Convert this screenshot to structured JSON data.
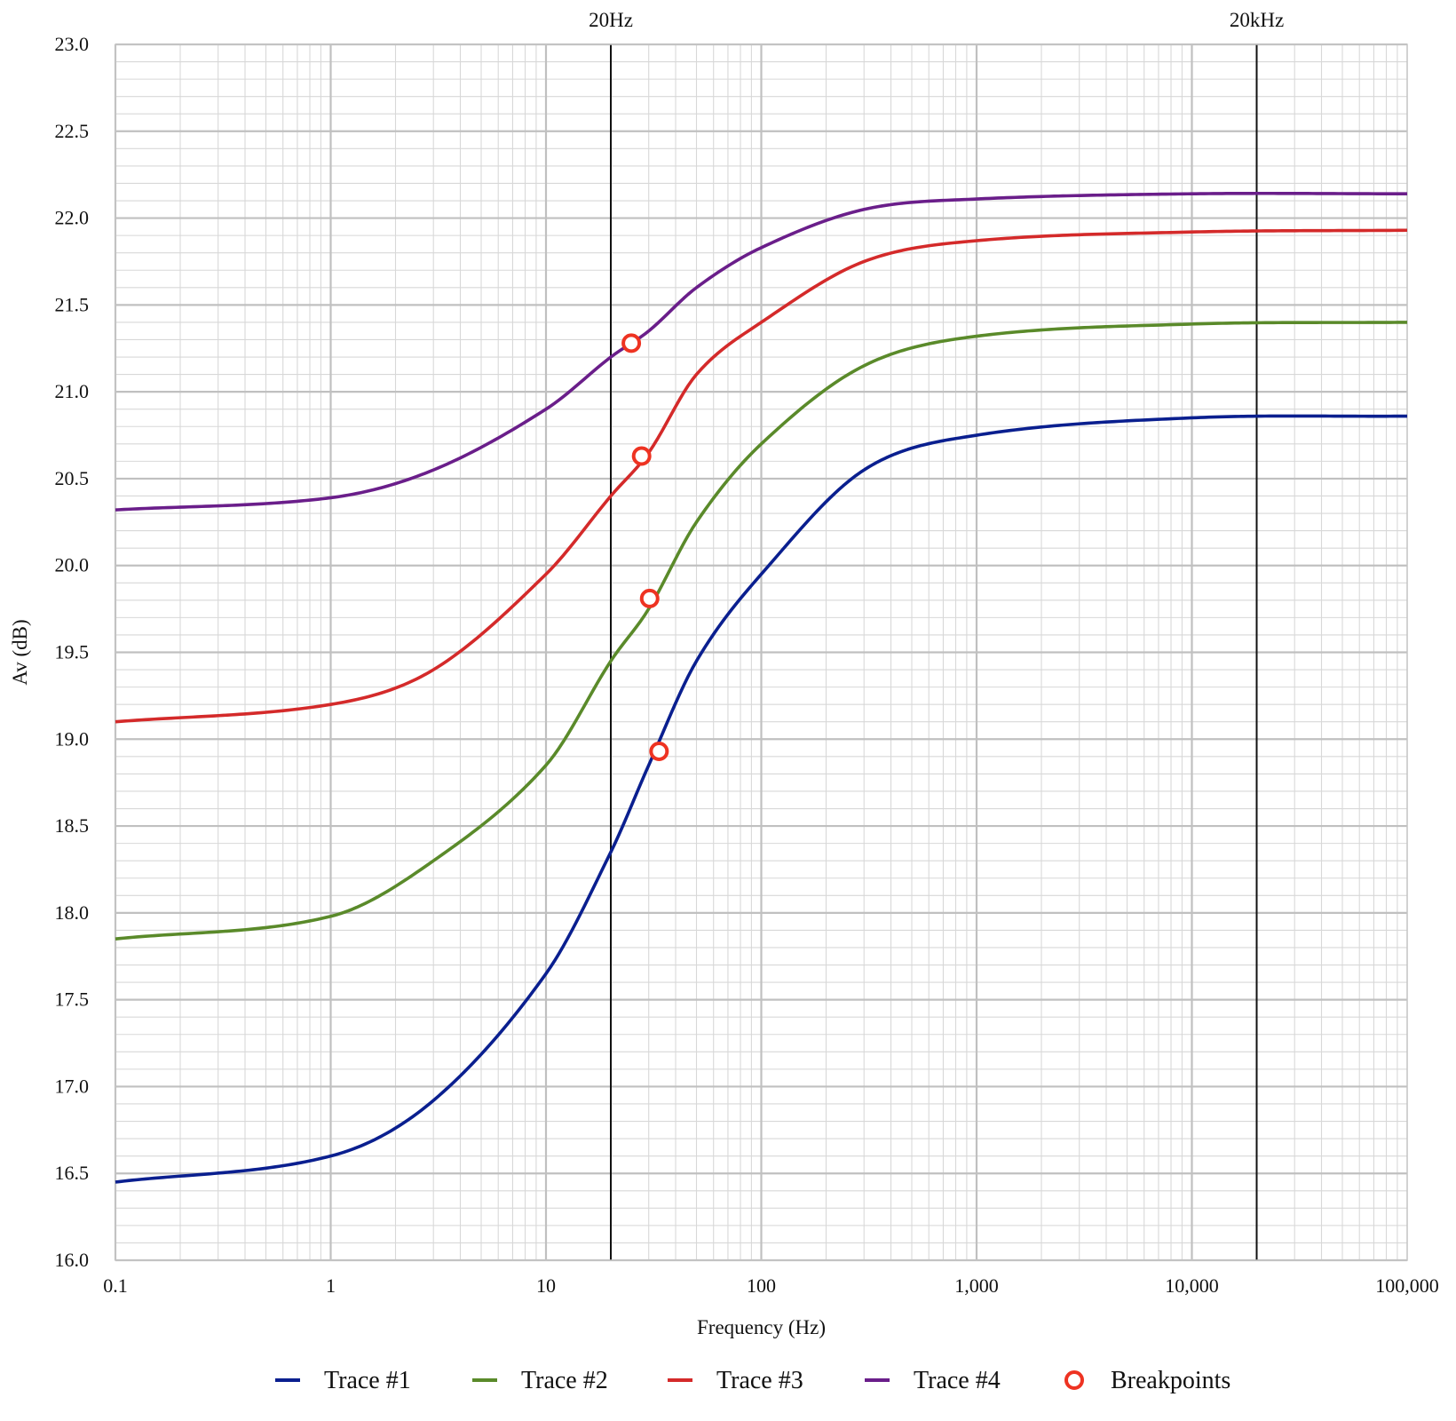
{
  "chart_data": {
    "type": "line",
    "xscale": "log",
    "xlim": [
      0.1,
      100000
    ],
    "ylim": [
      16.0,
      23.0
    ],
    "xlabel": "Frequency (Hz)",
    "ylabel": "Av (dB)",
    "grid": true,
    "legend_position": "bottom",
    "x_ticks": [
      "0.1",
      "1",
      "10",
      "100",
      "1,000",
      "10,000",
      "100,000"
    ],
    "y_ticks": [
      "16.0",
      "16.5",
      "17.0",
      "17.5",
      "18.0",
      "18.5",
      "19.0",
      "19.5",
      "20.0",
      "20.5",
      "21.0",
      "21.5",
      "22.0",
      "22.5",
      "23.0"
    ],
    "reference_lines": [
      {
        "x": 20,
        "label": "20Hz"
      },
      {
        "x": 20000,
        "label": "20kHz"
      }
    ],
    "x": [
      0.1,
      1,
      3,
      10,
      20,
      30,
      50,
      100,
      300,
      1000,
      10000,
      100000
    ],
    "series": [
      {
        "name": "Trace #1",
        "color": "#0a1f8f",
        "values": [
          16.45,
          16.6,
          16.92,
          17.65,
          18.35,
          18.85,
          19.45,
          19.95,
          20.55,
          20.75,
          20.85,
          20.86
        ]
      },
      {
        "name": "Trace #2",
        "color": "#5a8a2a",
        "values": [
          17.85,
          17.98,
          18.3,
          18.85,
          19.45,
          19.75,
          20.25,
          20.7,
          21.15,
          21.32,
          21.39,
          21.4
        ]
      },
      {
        "name": "Trace #3",
        "color": "#d42a2a",
        "values": [
          19.1,
          19.2,
          19.4,
          19.95,
          20.4,
          20.65,
          21.1,
          21.4,
          21.75,
          21.87,
          21.92,
          21.93
        ]
      },
      {
        "name": "Trace #4",
        "color": "#6a1e8a",
        "values": [
          20.32,
          20.39,
          20.55,
          20.9,
          21.2,
          21.35,
          21.6,
          21.83,
          22.05,
          22.11,
          22.14,
          22.14
        ]
      }
    ],
    "breakpoints": {
      "name": "Breakpoints",
      "color": "#ee3322",
      "points": [
        {
          "x": 24.9,
          "y": 21.28
        },
        {
          "x": 27.8,
          "y": 20.63
        },
        {
          "x": 30.3,
          "y": 19.81
        },
        {
          "x": 33.5,
          "y": 18.93
        }
      ]
    }
  }
}
